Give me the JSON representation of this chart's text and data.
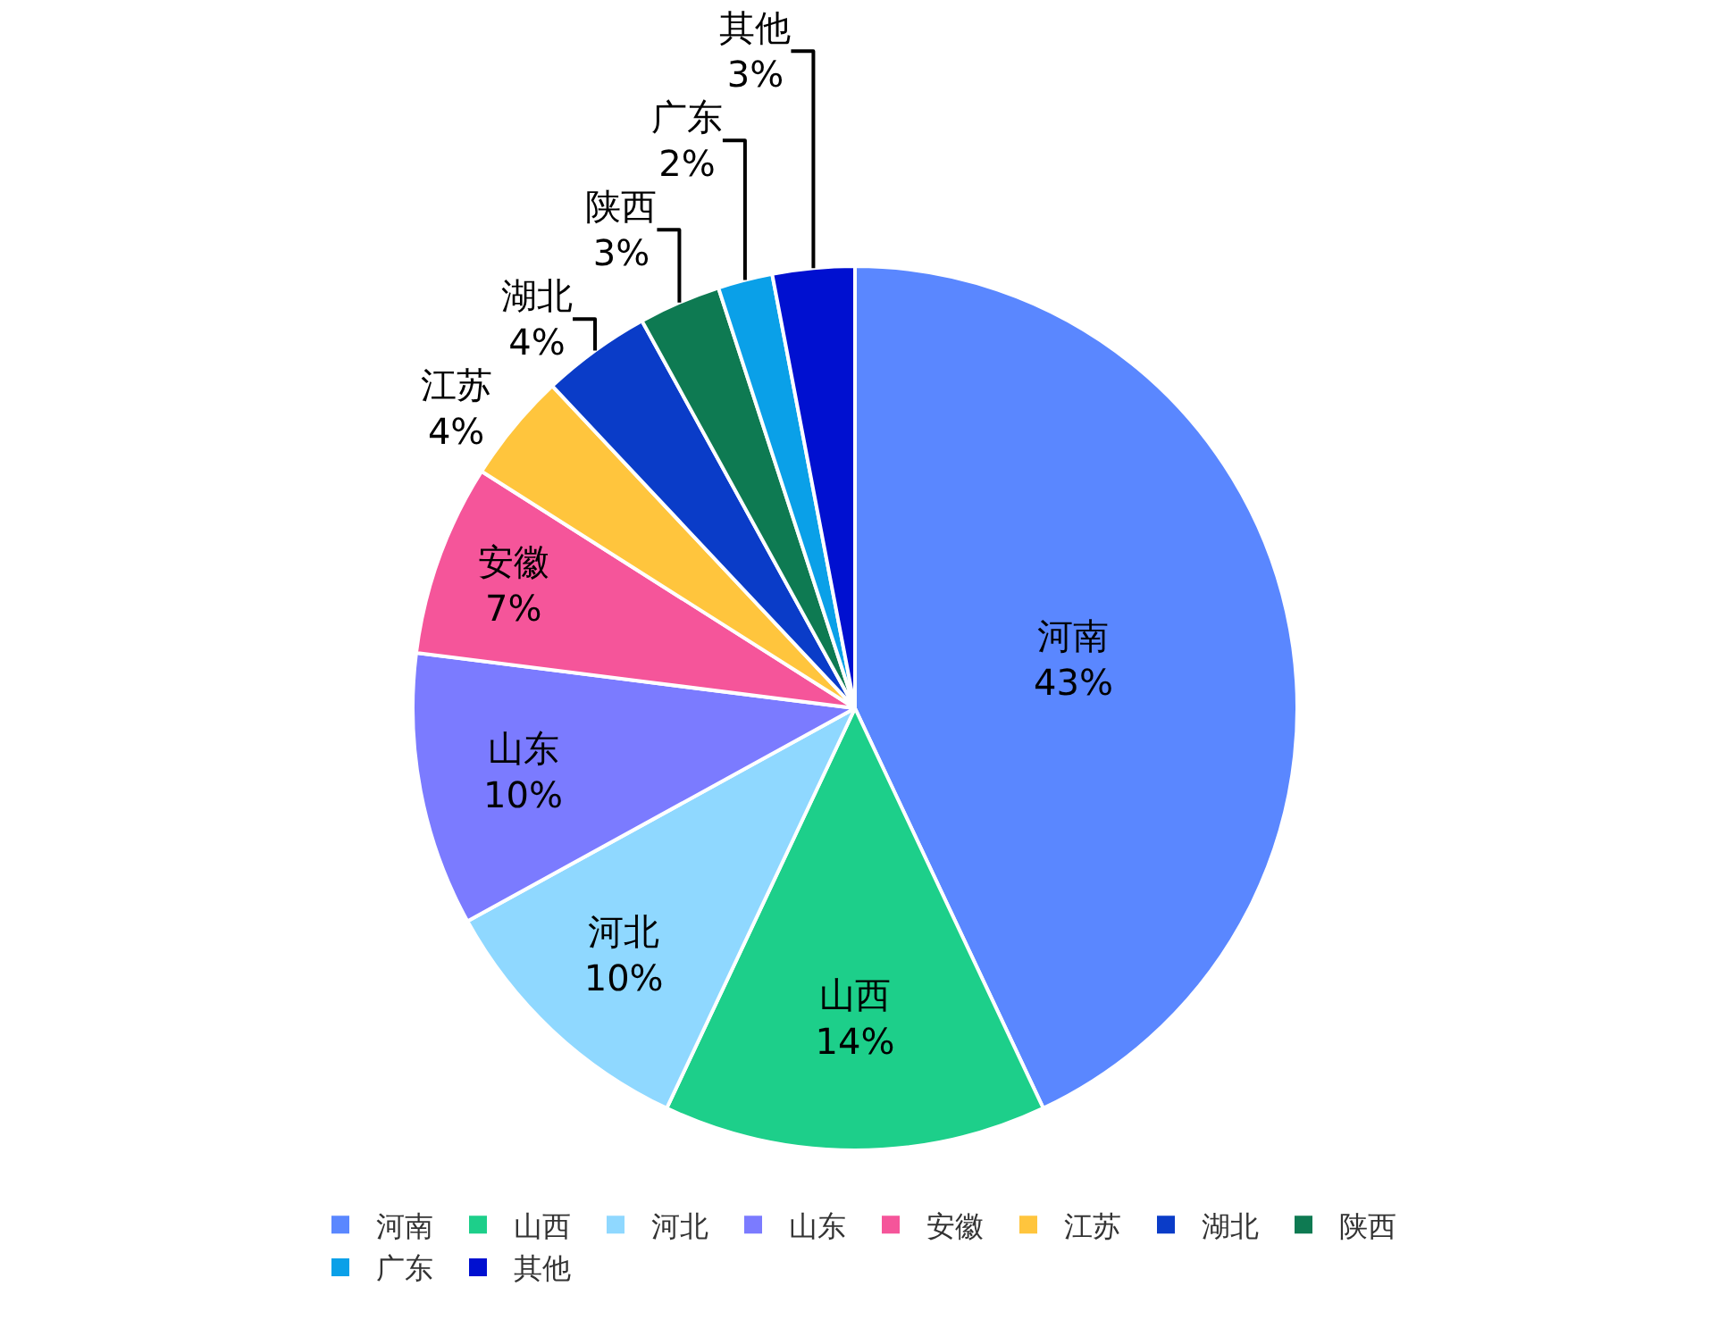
{
  "chart_data": {
    "type": "pie",
    "categories": [
      "河南",
      "山西",
      "河北",
      "山东",
      "安徽",
      "江苏",
      "湖北",
      "陕西",
      "广东",
      "其他"
    ],
    "values": [
      43,
      14,
      10,
      10,
      7,
      4,
      4,
      3,
      2,
      3
    ],
    "value_labels": [
      "43%",
      "14%",
      "10%",
      "10%",
      "7%",
      "4%",
      "4%",
      "3%",
      "2%",
      "3%"
    ],
    "colors": [
      "#5a87ff",
      "#1dcf8a",
      "#8fd8ff",
      "#7b7bff",
      "#f5559a",
      "#ffc53d",
      "#0a3cc8",
      "#0e7a52",
      "#0aa0e8",
      "#0010d0"
    ],
    "legend": "bottom"
  }
}
